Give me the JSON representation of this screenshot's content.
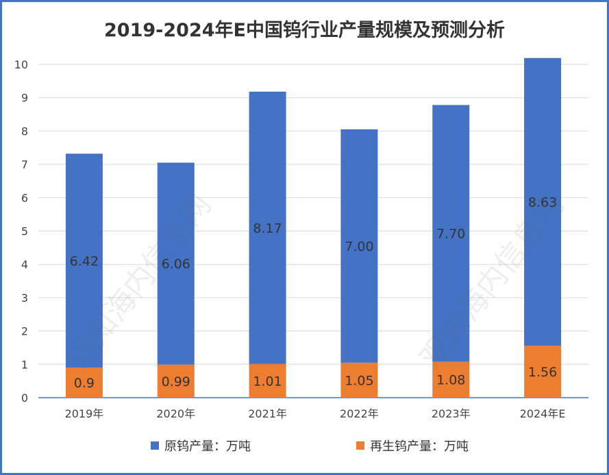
{
  "chart_data": {
    "type": "bar",
    "stacked": true,
    "title": "2019-2024年E中国钨行业产量规模及预测分析",
    "xlabel": "",
    "ylabel": "",
    "categories": [
      "2019年",
      "2020年",
      "2021年",
      "2022年",
      "2023年",
      "2024年E"
    ],
    "series": [
      {
        "name": "再生钨产量：万吨",
        "color": "#ed7d31",
        "values": [
          0.9,
          0.99,
          1.01,
          1.05,
          1.08,
          1.56
        ],
        "labels": [
          "0.9",
          "0.99",
          "1.01",
          "1.05",
          "1.08",
          "1.56"
        ]
      },
      {
        "name": "原钨产量：万吨",
        "color": "#4472c4",
        "values": [
          6.42,
          6.06,
          8.17,
          7.0,
          7.7,
          8.63
        ],
        "labels": [
          "6.42",
          "6.06",
          "8.17",
          "7.00",
          "7.70",
          "8.63"
        ]
      }
    ],
    "ylim": [
      0,
      10
    ],
    "yticks": [
      "0",
      "1",
      "2",
      "3",
      "4",
      "5",
      "6",
      "7",
      "8",
      "9",
      "10"
    ],
    "grid": true,
    "legend_position": "bottom"
  },
  "watermark": "观知海内信息网"
}
